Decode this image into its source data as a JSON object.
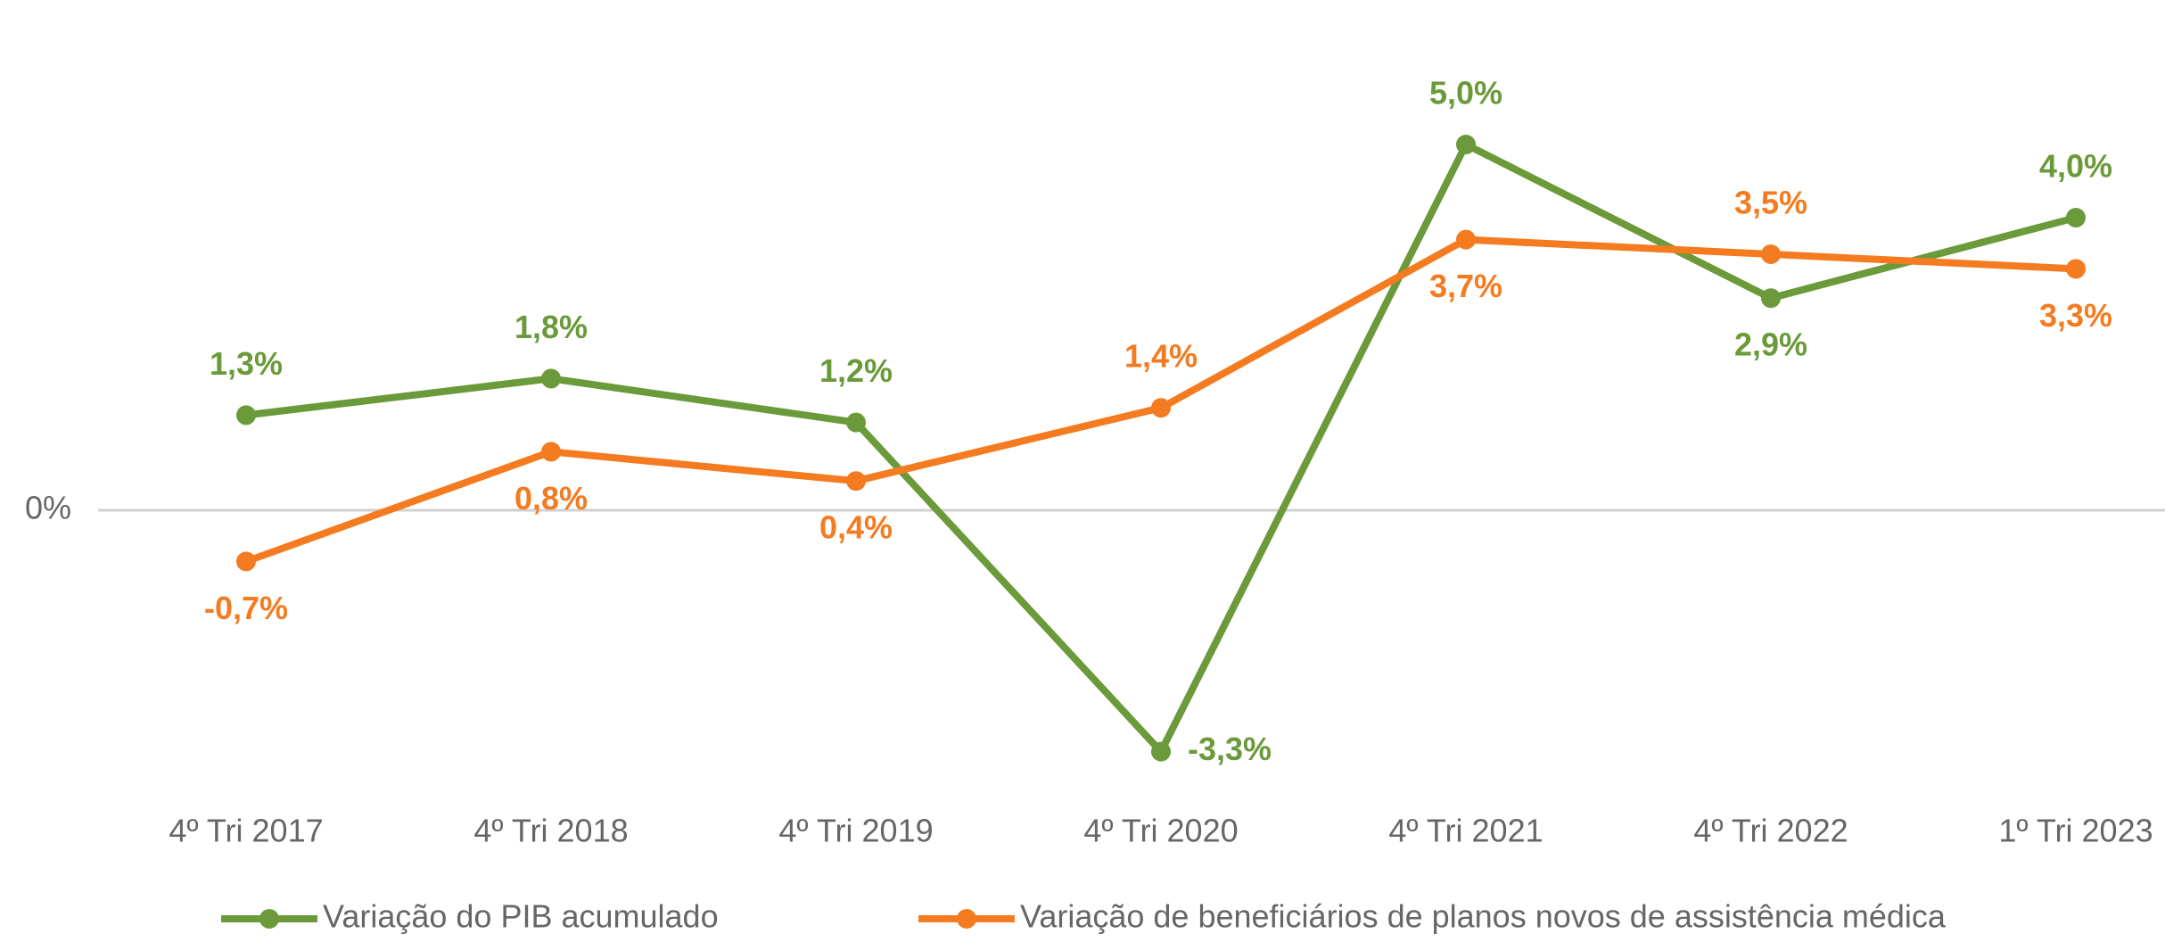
{
  "chart_data": {
    "type": "line",
    "categories": [
      "4º Tri 2017",
      "4º Tri 2018",
      "4º Tri 2019",
      "4º Tri 2020",
      "4º Tri 2021",
      "4º Tri 2022",
      "1º Tri 2023"
    ],
    "series": [
      {
        "name": "Variação do PIB acumulado",
        "color": "#6a9a3a",
        "values": [
          1.3,
          1.8,
          1.2,
          -3.3,
          5.0,
          2.9,
          4.0
        ],
        "value_labels": [
          "1,3%",
          "1,8%",
          "1,2%",
          "-3,3%",
          "5,0%",
          "2,9%",
          "4,0%"
        ]
      },
      {
        "name": "Variação de beneficiários de planos novos de assistência médica",
        "color": "#f47b20",
        "values": [
          -0.7,
          0.8,
          0.4,
          1.4,
          3.7,
          3.5,
          3.3
        ],
        "value_labels": [
          "-0,7%",
          "0,8%",
          "0,4%",
          "1,4%",
          "3,7%",
          "3,5%",
          "3,3%"
        ]
      }
    ],
    "ylim": [
      -4,
      6
    ],
    "yticks": [
      {
        "value": 0,
        "label": "0%"
      }
    ],
    "grid": true,
    "legend": "bottom"
  }
}
